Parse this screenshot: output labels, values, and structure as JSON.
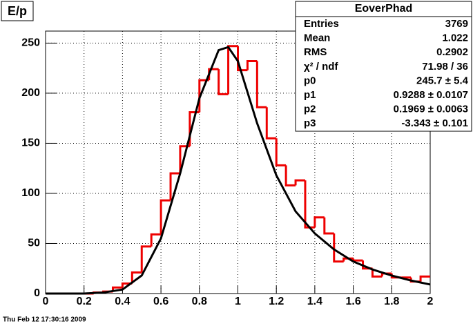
{
  "chart_data": {
    "type": "histogram",
    "title": "E/p",
    "bins": [
      0,
      0.05,
      0.1,
      0.15,
      0.2,
      0.25,
      0.3,
      0.35,
      0.4,
      0.45,
      0.5,
      0.55,
      0.6,
      0.65,
      0.7,
      0.75,
      0.8,
      0.85,
      0.9,
      0.95,
      1,
      1.05,
      1.1,
      1.15,
      1.2,
      1.25,
      1.3,
      1.35,
      1.4,
      1.45,
      1.5,
      1.55,
      1.6,
      1.65,
      1.7,
      1.75,
      1.8,
      1.85,
      1.9,
      1.95,
      2
    ],
    "values": [
      0,
      0,
      0,
      0,
      0,
      1,
      2,
      6,
      10,
      21,
      47,
      59,
      93,
      120,
      147,
      181,
      213,
      224,
      199,
      247,
      223,
      232,
      186,
      155,
      128,
      108,
      113,
      66,
      76,
      60,
      32,
      35,
      33,
      25,
      17,
      20,
      16,
      16,
      12,
      17
    ],
    "color": "#ee0000",
    "series": [
      {
        "name": "fit",
        "color": "#000000",
        "x": [
          0,
          0.2,
          0.3,
          0.4,
          0.5,
          0.6,
          0.7,
          0.8,
          0.9,
          0.95,
          1,
          1.1,
          1.2,
          1.3,
          1.4,
          1.5,
          1.6,
          1.7,
          1.8,
          1.9,
          2
        ],
        "values": [
          0,
          0,
          1,
          4,
          18,
          55,
          120,
          195,
          243,
          246,
          232,
          170,
          118,
          82,
          60,
          44,
          32,
          24,
          18,
          13,
          9
        ]
      }
    ],
    "xlim": [
      0,
      2
    ],
    "xticks": [
      0,
      0.2,
      0.4,
      0.6,
      0.8,
      1,
      1.2,
      1.4,
      1.6,
      1.8,
      2
    ],
    "ylim": [
      0,
      262
    ],
    "yticks": [
      0,
      50,
      100,
      150,
      200,
      250
    ],
    "grid": true
  },
  "stats": {
    "title": "EoverPhad",
    "rows": [
      [
        "Entries",
        "3769"
      ],
      [
        "Mean",
        "1.022"
      ],
      [
        "RMS",
        "0.2902"
      ],
      [
        "χ² / ndf",
        "71.98 / 36"
      ],
      [
        "p0",
        "245.7 ± 5.4"
      ],
      [
        "p1",
        "0.9288 ± 0.0107"
      ],
      [
        "p2",
        "0.1969 ± 0.0063"
      ],
      [
        "p3",
        "-3.343 ± 0.101"
      ]
    ]
  },
  "timestamp": "Thu Feb 12 17:30:16 2009"
}
